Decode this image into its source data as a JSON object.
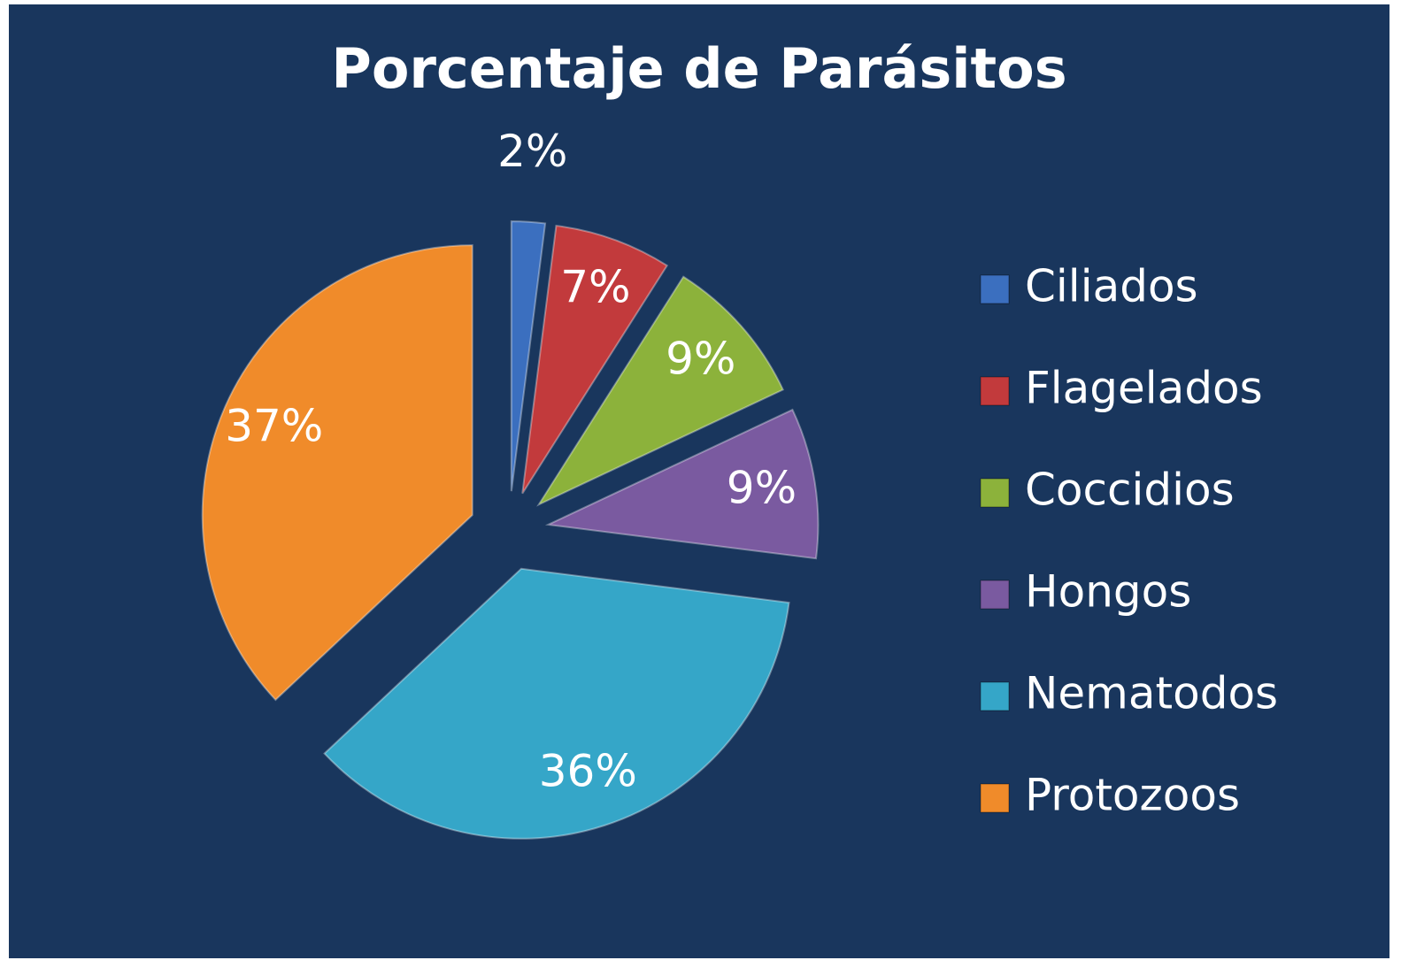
{
  "chart_data": {
    "type": "pie",
    "title": "Porcentaje de Parásitos",
    "categories": [
      "Ciliados",
      "Flagelados",
      "Coccidios",
      "Hongos",
      "Nematodos",
      "Protozoos"
    ],
    "values": [
      2,
      7,
      9,
      9,
      36,
      37
    ],
    "value_labels": [
      "2%",
      "7%",
      "9%",
      "9%",
      "36%",
      "37%"
    ],
    "colors": [
      "#3b6fbf",
      "#c23a3c",
      "#8cb23b",
      "#7a5aa0",
      "#35a6c8",
      "#f08b2a"
    ],
    "legend": "right"
  }
}
